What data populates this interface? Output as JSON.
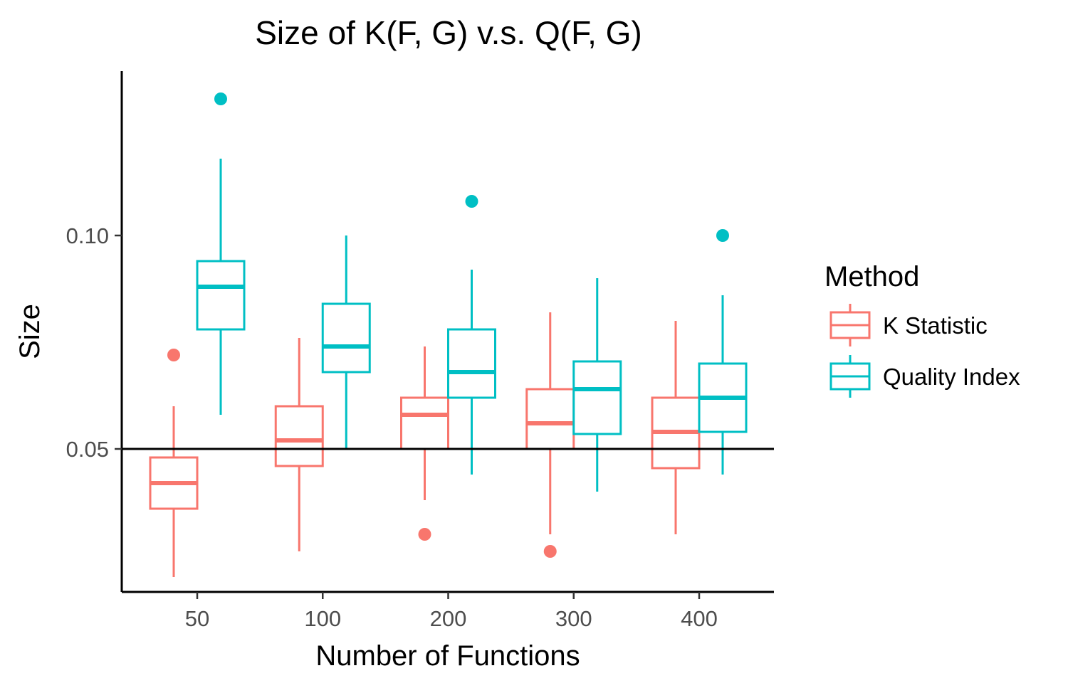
{
  "chart_data": {
    "type": "boxplot",
    "title": "Size of K(F, G) v.s. Q(F, G)",
    "xlabel": "Number of Functions",
    "ylabel": "Size",
    "categories": [
      "50",
      "100",
      "200",
      "300",
      "400"
    ],
    "y_ticks": [
      {
        "value": 0.05,
        "label": "0.05"
      },
      {
        "value": 0.1,
        "label": "0.10"
      }
    ],
    "ylim": [
      0.0165,
      0.1385
    ],
    "reference_line": {
      "y": 0.05,
      "color": "#000000"
    },
    "grid": false,
    "legend": {
      "title": "Method",
      "position": "right"
    },
    "series": [
      {
        "name": "K Statistic",
        "color": "#F8766D",
        "boxes": [
          {
            "whisker_low": 0.02,
            "q1": 0.036,
            "median": 0.042,
            "q3": 0.048,
            "whisker_high": 0.06,
            "outliers": [
              0.072
            ]
          },
          {
            "whisker_low": 0.026,
            "q1": 0.046,
            "median": 0.052,
            "q3": 0.06,
            "whisker_high": 0.076,
            "outliers": []
          },
          {
            "whisker_low": 0.038,
            "q1": 0.05,
            "median": 0.058,
            "q3": 0.062,
            "whisker_high": 0.074,
            "outliers": [
              0.03
            ]
          },
          {
            "whisker_low": 0.03,
            "q1": 0.05,
            "median": 0.056,
            "q3": 0.064,
            "whisker_high": 0.082,
            "outliers": [
              0.026
            ]
          },
          {
            "whisker_low": 0.03,
            "q1": 0.0455,
            "median": 0.054,
            "q3": 0.062,
            "whisker_high": 0.08,
            "outliers": []
          }
        ]
      },
      {
        "name": "Quality Index",
        "color": "#00BFC4",
        "boxes": [
          {
            "whisker_low": 0.058,
            "q1": 0.078,
            "median": 0.088,
            "q3": 0.094,
            "whisker_high": 0.118,
            "outliers": [
              0.132
            ]
          },
          {
            "whisker_low": 0.05,
            "q1": 0.068,
            "median": 0.074,
            "q3": 0.084,
            "whisker_high": 0.1,
            "outliers": []
          },
          {
            "whisker_low": 0.044,
            "q1": 0.062,
            "median": 0.068,
            "q3": 0.078,
            "whisker_high": 0.092,
            "outliers": [
              0.108
            ]
          },
          {
            "whisker_low": 0.04,
            "q1": 0.0535,
            "median": 0.064,
            "q3": 0.0705,
            "whisker_high": 0.09,
            "outliers": []
          },
          {
            "whisker_low": 0.044,
            "q1": 0.054,
            "median": 0.062,
            "q3": 0.07,
            "whisker_high": 0.086,
            "outliers": [
              0.1
            ]
          }
        ]
      }
    ]
  }
}
